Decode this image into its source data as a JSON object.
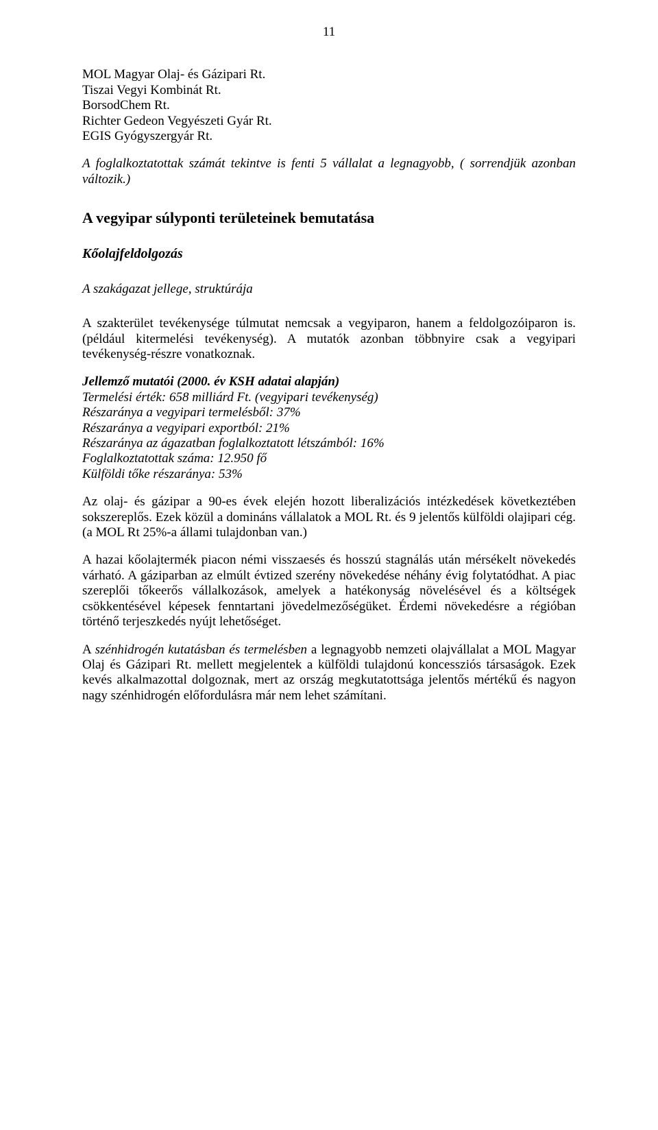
{
  "page_number": "11",
  "companies": {
    "lines": [
      "MOL Magyar Olaj- és Gázipari Rt.",
      "Tiszai Vegyi Kombinát Rt.",
      "BorsodChem Rt.",
      "Richter Gedeon Vegyészeti Gyár Rt.",
      "EGIS Gyógyszergyár Rt."
    ],
    "note": "A foglalkoztatottak számát tekintve is fenti 5 vállalat a legnagyobb, ( sorrendjük azonban változik.)"
  },
  "section_heading": "A vegyipar súlyponti területeinek bemutatása",
  "subsection_heading": "Kőolajfeldolgozás",
  "subsubsection_heading": "A szakágazat jellege, struktúrája",
  "body1": "A szakterület tevékenysége túlmutat nemcsak a vegyiparon, hanem a feldolgozóiparon is. (például kitermelési tevékenység). A mutatók azonban többnyire csak a vegyipari tevékenység-részre vonatkoznak.",
  "stats": {
    "title": "Jellemző mutatói (2000. év KSH adatai alapján)",
    "lines": [
      "Termelési érték: 658 milliárd Ft. (vegyipari tevékenység)",
      "Részaránya a vegyipari termelésből: 37%",
      "Részaránya a vegyipari exportból: 21%",
      "Részaránya az ágazatban foglalkoztatott létszámból: 16%",
      "Foglalkoztatottak száma: 12.950 fő",
      "Külföldi tőke részaránya: 53%"
    ]
  },
  "body2": "Az olaj- és gázipar a 90-es évek elején hozott liberalizációs intézkedések következtében sokszereplős. Ezek közül a domináns vállalatok a MOL Rt. és 9 jelentős külföldi olajipari cég. (a MOL Rt 25%-a állami tulajdonban van.)",
  "body3": "A hazai kőolajtermék piacon némi visszaesés és hosszú stagnálás után mérsékelt növekedés várható. A gáziparban az elmúlt évtized szerény növekedése néhány évig folytatódhat. A piac szereplői tőkeerős vállalkozások, amelyek a hatékonyság növelésével és a költségek csökkentésével képesek fenntartani jövedelmezőségüket. Érdemi növekedésre a régióban történő terjeszkedés nyújt lehetőséget.",
  "body4_prefix": "A ",
  "body4_italic": "szénhidrogén kutatásban és termelésben",
  "body4_rest": " a legnagyobb nemzeti olajvállalat a MOL Magyar Olaj és Gázipari Rt. mellett megjelentek a külföldi tulajdonú koncessziós társaságok. Ezek kevés alkalmazottal dolgoznak, mert az ország megkutatottsága jelentős mértékű és nagyon nagy szénhidrogén előfordulásra már nem lehet számítani."
}
